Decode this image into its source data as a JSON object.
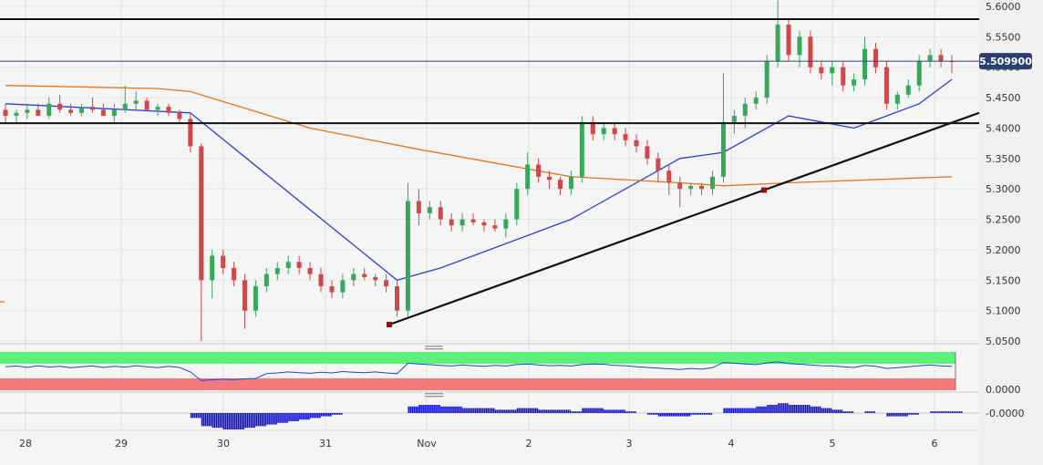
{
  "chart_data": {
    "type": "candlestick",
    "price_axis": {
      "range": [
        5.03,
        5.61
      ],
      "ticks": [
        "5.6000",
        "5.5500",
        "5.5000",
        "5.4500",
        "5.4000",
        "5.3500",
        "5.3000",
        "5.2500",
        "5.2000",
        "5.1500",
        "5.1000",
        "5.0500"
      ]
    },
    "x_axis": {
      "ticks": [
        "28",
        "29",
        "30",
        "31",
        "Nov",
        "2",
        "3",
        "4",
        "5",
        "6"
      ]
    },
    "current_price": {
      "value": 5.5099,
      "label": "5.509900"
    },
    "horizontal_levels": [
      5.579,
      5.408
    ],
    "trendline": {
      "from": [
        "Oct 31 ~14:00",
        5.077
      ],
      "to": [
        "Nov 6 ~08:00",
        5.425
      ]
    },
    "ohlc": [
      [
        5.43,
        5.44,
        5.41,
        5.42
      ],
      [
        5.42,
        5.43,
        5.41,
        5.425
      ],
      [
        5.425,
        5.44,
        5.415,
        5.43
      ],
      [
        5.43,
        5.44,
        5.42,
        5.42
      ],
      [
        5.42,
        5.45,
        5.415,
        5.44
      ],
      [
        5.44,
        5.455,
        5.425,
        5.43
      ],
      [
        5.43,
        5.44,
        5.42,
        5.425
      ],
      [
        5.425,
        5.44,
        5.42,
        5.435
      ],
      [
        5.435,
        5.45,
        5.425,
        5.43
      ],
      [
        5.43,
        5.44,
        5.42,
        5.42
      ],
      [
        5.42,
        5.44,
        5.41,
        5.43
      ],
      [
        5.43,
        5.47,
        5.425,
        5.44
      ],
      [
        5.44,
        5.46,
        5.43,
        5.445
      ],
      [
        5.445,
        5.45,
        5.43,
        5.43
      ],
      [
        5.43,
        5.44,
        5.42,
        5.435
      ],
      [
        5.435,
        5.44,
        5.42,
        5.425
      ],
      [
        5.425,
        5.43,
        5.41,
        5.415
      ],
      [
        5.415,
        5.425,
        5.36,
        5.37
      ],
      [
        5.37,
        5.375,
        5.05,
        5.15
      ],
      [
        5.15,
        5.2,
        5.12,
        5.19
      ],
      [
        5.19,
        5.2,
        5.16,
        5.17
      ],
      [
        5.17,
        5.18,
        5.14,
        5.15
      ],
      [
        5.15,
        5.16,
        5.07,
        5.1
      ],
      [
        5.1,
        5.15,
        5.09,
        5.14
      ],
      [
        5.14,
        5.17,
        5.13,
        5.16
      ],
      [
        5.16,
        5.18,
        5.15,
        5.17
      ],
      [
        5.17,
        5.19,
        5.16,
        5.18
      ],
      [
        5.18,
        5.19,
        5.16,
        5.17
      ],
      [
        5.17,
        5.18,
        5.15,
        5.16
      ],
      [
        5.16,
        5.17,
        5.13,
        5.14
      ],
      [
        5.14,
        5.15,
        5.12,
        5.13
      ],
      [
        5.13,
        5.16,
        5.12,
        5.15
      ],
      [
        5.15,
        5.17,
        5.14,
        5.16
      ],
      [
        5.16,
        5.17,
        5.15,
        5.155
      ],
      [
        5.155,
        5.16,
        5.14,
        5.15
      ],
      [
        5.15,
        5.16,
        5.13,
        5.14
      ],
      [
        5.14,
        5.15,
        5.09,
        5.1
      ],
      [
        5.1,
        5.31,
        5.09,
        5.28
      ],
      [
        5.28,
        5.3,
        5.24,
        5.26
      ],
      [
        5.26,
        5.28,
        5.25,
        5.27
      ],
      [
        5.27,
        5.28,
        5.24,
        5.25
      ],
      [
        5.25,
        5.26,
        5.23,
        5.24
      ],
      [
        5.24,
        5.26,
        5.23,
        5.25
      ],
      [
        5.25,
        5.26,
        5.24,
        5.245
      ],
      [
        5.245,
        5.25,
        5.23,
        5.24
      ],
      [
        5.24,
        5.25,
        5.23,
        5.235
      ],
      [
        5.235,
        5.26,
        5.22,
        5.25
      ],
      [
        5.25,
        5.31,
        5.24,
        5.3
      ],
      [
        5.3,
        5.36,
        5.29,
        5.34
      ],
      [
        5.34,
        5.35,
        5.31,
        5.32
      ],
      [
        5.32,
        5.33,
        5.3,
        5.315
      ],
      [
        5.315,
        5.32,
        5.29,
        5.3
      ],
      [
        5.3,
        5.33,
        5.29,
        5.32
      ],
      [
        5.32,
        5.42,
        5.31,
        5.41
      ],
      [
        5.41,
        5.42,
        5.38,
        5.39
      ],
      [
        5.39,
        5.41,
        5.38,
        5.4
      ],
      [
        5.4,
        5.41,
        5.38,
        5.39
      ],
      [
        5.39,
        5.4,
        5.37,
        5.38
      ],
      [
        5.38,
        5.39,
        5.36,
        5.37
      ],
      [
        5.37,
        5.38,
        5.34,
        5.35
      ],
      [
        5.35,
        5.36,
        5.31,
        5.33
      ],
      [
        5.33,
        5.34,
        5.29,
        5.31
      ],
      [
        5.31,
        5.32,
        5.27,
        5.3
      ],
      [
        5.3,
        5.31,
        5.29,
        5.305
      ],
      [
        5.305,
        5.31,
        5.29,
        5.3
      ],
      [
        5.3,
        5.33,
        5.29,
        5.32
      ],
      [
        5.32,
        5.49,
        5.31,
        5.41
      ],
      [
        5.41,
        5.43,
        5.39,
        5.42
      ],
      [
        5.42,
        5.45,
        5.4,
        5.44
      ],
      [
        5.44,
        5.46,
        5.43,
        5.45
      ],
      [
        5.45,
        5.52,
        5.44,
        5.51
      ],
      [
        5.51,
        5.61,
        5.5,
        5.57
      ],
      [
        5.57,
        5.58,
        5.51,
        5.52
      ],
      [
        5.52,
        5.56,
        5.5,
        5.55
      ],
      [
        5.55,
        5.56,
        5.49,
        5.5
      ],
      [
        5.5,
        5.51,
        5.48,
        5.49
      ],
      [
        5.49,
        5.51,
        5.47,
        5.5
      ],
      [
        5.5,
        5.51,
        5.46,
        5.47
      ],
      [
        5.47,
        5.49,
        5.46,
        5.48
      ],
      [
        5.48,
        5.55,
        5.47,
        5.53
      ],
      [
        5.53,
        5.54,
        5.49,
        5.5
      ],
      [
        5.5,
        5.51,
        5.43,
        5.44
      ],
      [
        5.44,
        5.46,
        5.43,
        5.455
      ],
      [
        5.455,
        5.48,
        5.45,
        5.47
      ],
      [
        5.47,
        5.52,
        5.46,
        5.51
      ],
      [
        5.51,
        5.53,
        5.5,
        5.52
      ],
      [
        5.52,
        5.53,
        5.5,
        5.51
      ],
      [
        5.51,
        5.52,
        5.49,
        5.5099
      ]
    ],
    "moving_averages": [
      {
        "color": "#2b3fd6",
        "points": [
          [
            0,
            5.44
          ],
          [
            17,
            5.425
          ],
          [
            36,
            5.15
          ],
          [
            40,
            5.17
          ],
          [
            52,
            5.25
          ],
          [
            62,
            5.35
          ],
          [
            66,
            5.36
          ],
          [
            72,
            5.42
          ],
          [
            78,
            5.4
          ],
          [
            84,
            5.44
          ],
          [
            87,
            5.48
          ]
        ]
      },
      {
        "color": "#e8751a",
        "points": [
          [
            0,
            5.47
          ],
          [
            14,
            5.465
          ],
          [
            17,
            5.46
          ],
          [
            28,
            5.4
          ],
          [
            38,
            5.365
          ],
          [
            52,
            5.32
          ],
          [
            62,
            5.31
          ],
          [
            66,
            5.305
          ],
          [
            72,
            5.31
          ],
          [
            87,
            5.32
          ]
        ]
      }
    ],
    "oscillator": {
      "type": "line",
      "levels": [
        {
          "value": 0.0,
          "label": "0.0000"
        }
      ],
      "zones": [
        {
          "name": "upper",
          "color": "#5cf27a"
        },
        {
          "name": "lower",
          "color": "#f27a7a"
        }
      ],
      "values": [
        60,
        62,
        58,
        63,
        59,
        61,
        57,
        60,
        62,
        58,
        61,
        59,
        63,
        60,
        57,
        61,
        58,
        45,
        20,
        22,
        24,
        23,
        25,
        26,
        40,
        42,
        45,
        43,
        41,
        44,
        42,
        46,
        44,
        43,
        45,
        42,
        40,
        70,
        68,
        66,
        64,
        62,
        65,
        63,
        61,
        64,
        62,
        66,
        68,
        65,
        63,
        64,
        62,
        66,
        68,
        67,
        64,
        63,
        60,
        58,
        56,
        54,
        52,
        55,
        53,
        57,
        72,
        70,
        68,
        66,
        71,
        74,
        69,
        67,
        65,
        63,
        62,
        60,
        58,
        64,
        61,
        55,
        57,
        60,
        63,
        65,
        62,
        61
      ]
    },
    "histogram": {
      "type": "bar",
      "levels": [
        {
          "value": 0.0,
          "label": "-0.0000"
        }
      ],
      "values": [
        0,
        0,
        0,
        0,
        0,
        0,
        0,
        0,
        0,
        0,
        0,
        0,
        0,
        0,
        0,
        0,
        0,
        -3,
        -8,
        -9,
        -10,
        -10,
        -9,
        -8,
        -7,
        -6,
        -5,
        -4,
        -3,
        -2,
        -1,
        0,
        0,
        0,
        0,
        0,
        0,
        4,
        5,
        5,
        4,
        4,
        3,
        3,
        3,
        2,
        2,
        3,
        3,
        2,
        2,
        2,
        1,
        3,
        3,
        2,
        2,
        1,
        0,
        -1,
        -2,
        -2,
        -2,
        -1,
        -1,
        0,
        3,
        3,
        3,
        4,
        5,
        6,
        5,
        5,
        4,
        3,
        2,
        1,
        0,
        1,
        0,
        -2,
        -2,
        -1,
        0,
        1,
        1,
        1
      ]
    }
  }
}
